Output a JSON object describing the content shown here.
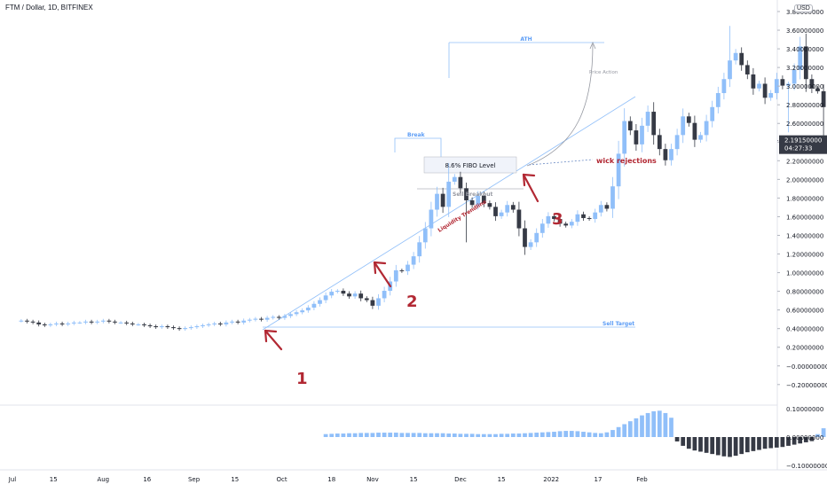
{
  "header": {
    "symbol_title": "FTM / Dollar, 1D, BITFINEX",
    "currency": "USD"
  },
  "colors": {
    "up_candle": "#90bff9",
    "down_candle": "#363a45",
    "trendline": "#90bff9",
    "annotation_red": "#b22833",
    "hist_pos": "#90bff9",
    "hist_neg": "#363a45",
    "price_badge": "#363a45"
  },
  "price_axis": {
    "ticks": [
      "3.80000000",
      "3.60000000",
      "3.40000000",
      "3.20000000",
      "3.00000000",
      "2.80000000",
      "2.60000000",
      "2.40000000",
      "2.20000000",
      "2.00000000",
      "1.80000000",
      "1.60000000",
      "1.40000000",
      "1.20000000",
      "1.00000000",
      "0.80000000",
      "0.60000000",
      "0.40000000",
      "0.20000000",
      "−0.00000000",
      "−0.20000000"
    ],
    "current_price": "2.19150000",
    "countdown": "04:27:33"
  },
  "indicator_axis": {
    "ticks": [
      "0.10000000",
      "0.00000000",
      "−0.10000000"
    ]
  },
  "time_axis": {
    "ticks": [
      "Jul",
      "15",
      "Aug",
      "16",
      "Sep",
      "15",
      "Oct",
      "18",
      "Nov",
      "15",
      "Dec",
      "15",
      "2022",
      "17",
      "Feb"
    ]
  },
  "annotations": {
    "ath": "ATH",
    "price_action": "Price Action",
    "break": "Break",
    "fibo": "8.6% FIBO Level",
    "sell_breakout": "Sell Breakout",
    "liquidity_trendline": "Liquidity Trendline",
    "wick_rejections": "wick rejections",
    "sell_target": "Sell Target",
    "marker_1": "1",
    "marker_2": "2",
    "marker_3": "3"
  },
  "chart_data": {
    "type": "candlestick",
    "title": "FTM / Dollar, 1D, BITFINEX",
    "ylim": [
      -0.3,
      3.9
    ],
    "x_range_days": [
      -10,
      228
    ],
    "date_origin": "2021-07-01",
    "x_ticks": [
      {
        "label": "Jul",
        "date": "2021-07-01"
      },
      {
        "label": "15",
        "date": "2021-07-15"
      },
      {
        "label": "Aug",
        "date": "2021-08-01"
      },
      {
        "label": "16",
        "date": "2021-08-16"
      },
      {
        "label": "Sep",
        "date": "2021-09-01"
      },
      {
        "label": "15",
        "date": "2021-09-15"
      },
      {
        "label": "Oct",
        "date": "2021-10-01"
      },
      {
        "label": "18",
        "date": "2021-10-18"
      },
      {
        "label": "Nov",
        "date": "2021-11-01"
      },
      {
        "label": "15",
        "date": "2021-11-15"
      },
      {
        "label": "Dec",
        "date": "2021-12-01"
      },
      {
        "label": "15",
        "date": "2021-12-15"
      },
      {
        "label": "2022",
        "date": "2022-01-01"
      },
      {
        "label": "17",
        "date": "2022-01-17"
      },
      {
        "label": "Feb",
        "date": "2022-02-01"
      }
    ],
    "closes": [
      0.26,
      0.25,
      0.24,
      0.22,
      0.21,
      0.22,
      0.23,
      0.22,
      0.23,
      0.24,
      0.24,
      0.25,
      0.24,
      0.25,
      0.26,
      0.25,
      0.24,
      0.24,
      0.23,
      0.22,
      0.22,
      0.21,
      0.2,
      0.19,
      0.2,
      0.19,
      0.18,
      0.17,
      0.18,
      0.19,
      0.2,
      0.21,
      0.22,
      0.23,
      0.22,
      0.24,
      0.25,
      0.24,
      0.26,
      0.27,
      0.28,
      0.27,
      0.29,
      0.3,
      0.29,
      0.31,
      0.33,
      0.35,
      0.37,
      0.4,
      0.44,
      0.48,
      0.53,
      0.57,
      0.58,
      0.55,
      0.52,
      0.55,
      0.5,
      0.48,
      0.42,
      0.5,
      0.58,
      0.68,
      0.8,
      0.79,
      0.86,
      0.95,
      1.1,
      1.25,
      1.45,
      1.62,
      1.48,
      1.75,
      1.8,
      1.68,
      1.55,
      1.5,
      1.6,
      1.52,
      1.48,
      1.38,
      1.42,
      1.5,
      1.45,
      1.25,
      1.05,
      1.1,
      1.2,
      1.3,
      1.38,
      1.35,
      1.3,
      1.28,
      1.32,
      1.4,
      1.36,
      1.35,
      1.42,
      1.5,
      1.46,
      1.7,
      2.05,
      2.4,
      2.3,
      2.15,
      2.35,
      2.5,
      2.25,
      2.1,
      1.98,
      2.1,
      2.25,
      2.45,
      2.38,
      2.2,
      2.25,
      2.4,
      2.55,
      2.7,
      2.85,
      3.05,
      3.13,
      3.0,
      2.9,
      2.75,
      2.8,
      2.65,
      2.7,
      2.85,
      2.78,
      2.8,
      2.95,
      3.2,
      2.85,
      2.75,
      2.72,
      2.55,
      2.55,
      2.5,
      2.3,
      2.15,
      2.19
    ],
    "volume_oscillator": {
      "ylim": [
        -0.11,
        0.105
      ],
      "values": [
        0.01,
        0.011,
        0.012,
        0.012,
        0.013,
        0.013,
        0.014,
        0.014,
        0.014,
        0.015,
        0.015,
        0.015,
        0.015,
        0.014,
        0.014,
        0.014,
        0.014,
        0.013,
        0.013,
        0.013,
        0.013,
        0.012,
        0.012,
        0.011,
        0.011,
        0.011,
        0.01,
        0.01,
        0.01,
        0.01,
        0.011,
        0.011,
        0.012,
        0.012,
        0.013,
        0.014,
        0.015,
        0.016,
        0.017,
        0.018,
        0.02,
        0.021,
        0.021,
        0.02,
        0.018,
        0.016,
        0.014,
        0.013,
        0.016,
        0.024,
        0.034,
        0.044,
        0.054,
        0.064,
        0.074,
        0.082,
        0.088,
        0.09,
        0.082,
        0.066,
        -0.015,
        -0.03,
        -0.04,
        -0.046,
        -0.05,
        -0.054,
        -0.058,
        -0.062,
        -0.066,
        -0.068,
        -0.064,
        -0.058,
        -0.052,
        -0.048,
        -0.044,
        -0.04,
        -0.038,
        -0.036,
        -0.034,
        -0.03,
        -0.026,
        -0.022,
        -0.018,
        -0.014,
        0.01,
        0.03,
        0.06,
        0.085,
        0.09,
        0.085,
        0.07,
        0.055,
        0.04,
        0.026,
        0.018,
        0.016,
        0.018,
        0.026,
        0.04,
        0.06,
        0.07,
        0.06,
        0.04,
        0.022,
        -0.012,
        -0.03,
        -0.04,
        -0.046,
        -0.048,
        -0.044,
        -0.04,
        -0.046,
        -0.052,
        -0.058,
        -0.064,
        -0.074,
        -0.082,
        -0.095
      ]
    }
  }
}
